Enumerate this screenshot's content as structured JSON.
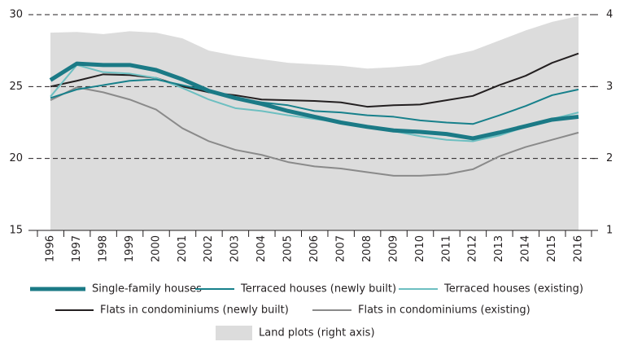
{
  "chart_data": {
    "type": "line",
    "categories": [
      "1996",
      "1997",
      "1998",
      "1999",
      "2000",
      "2001",
      "2002",
      "2003",
      "2004",
      "2005",
      "2006",
      "2007",
      "2008",
      "2009",
      "2010",
      "2011",
      "2012",
      "2013",
      "2014",
      "2015",
      "2016"
    ],
    "ylim": [
      15,
      30
    ],
    "yticks": [
      15,
      20,
      25,
      30
    ],
    "y2lim": [
      1,
      4
    ],
    "y2ticks": [
      1,
      2,
      3,
      4
    ],
    "grid": true,
    "series": [
      {
        "name": "Single-family houses",
        "color": "#1b7a86",
        "values": [
          25.45,
          26.6,
          26.5,
          26.5,
          26.15,
          25.5,
          24.7,
          24.2,
          23.8,
          23.3,
          22.9,
          22.5,
          22.2,
          21.95,
          21.85,
          21.7,
          21.4,
          21.8,
          22.25,
          22.7,
          22.9
        ]
      },
      {
        "name": "Terraced houses (newly built)",
        "color": "#17808b",
        "values": [
          24.2,
          24.8,
          25.1,
          25.4,
          25.5,
          25.1,
          24.7,
          24.2,
          23.9,
          23.7,
          23.3,
          23.2,
          23.0,
          22.9,
          22.65,
          22.5,
          22.4,
          23.0,
          23.65,
          24.4,
          24.8
        ]
      },
      {
        "name": "Terraced houses (existing)",
        "color": "#6dbfc1",
        "values": [
          24.3,
          26.5,
          26.0,
          25.9,
          25.6,
          24.9,
          24.1,
          23.5,
          23.3,
          23.0,
          22.75,
          22.5,
          22.25,
          21.9,
          21.55,
          21.3,
          21.2,
          21.6,
          22.2,
          22.75,
          23.2
        ]
      },
      {
        "name": "Flats in condominiums (newly built)",
        "color": "#231f20",
        "values": [
          25.0,
          25.4,
          25.85,
          25.8,
          25.6,
          25.0,
          24.6,
          24.4,
          24.1,
          24.05,
          24.0,
          23.9,
          23.6,
          23.7,
          23.75,
          24.05,
          24.35,
          25.1,
          25.75,
          26.65,
          27.3
        ]
      },
      {
        "name": "Flats in condominiums (existing)",
        "color": "#8a8a8a",
        "values": [
          24.05,
          24.95,
          24.6,
          24.1,
          23.4,
          22.1,
          21.2,
          20.6,
          20.25,
          19.75,
          19.45,
          19.3,
          19.05,
          18.8,
          18.8,
          18.9,
          19.25,
          20.15,
          20.8,
          21.3,
          21.8
        ]
      },
      {
        "name": "Land plots (right axis)",
        "color": "#dcdcdc",
        "axis": "y2",
        "values": [
          3.75,
          3.76,
          3.73,
          3.77,
          3.75,
          3.67,
          3.5,
          3.43,
          3.38,
          3.33,
          3.31,
          3.29,
          3.25,
          3.27,
          3.3,
          3.42,
          3.5,
          3.64,
          3.78,
          3.9,
          3.98
        ]
      }
    ]
  }
}
